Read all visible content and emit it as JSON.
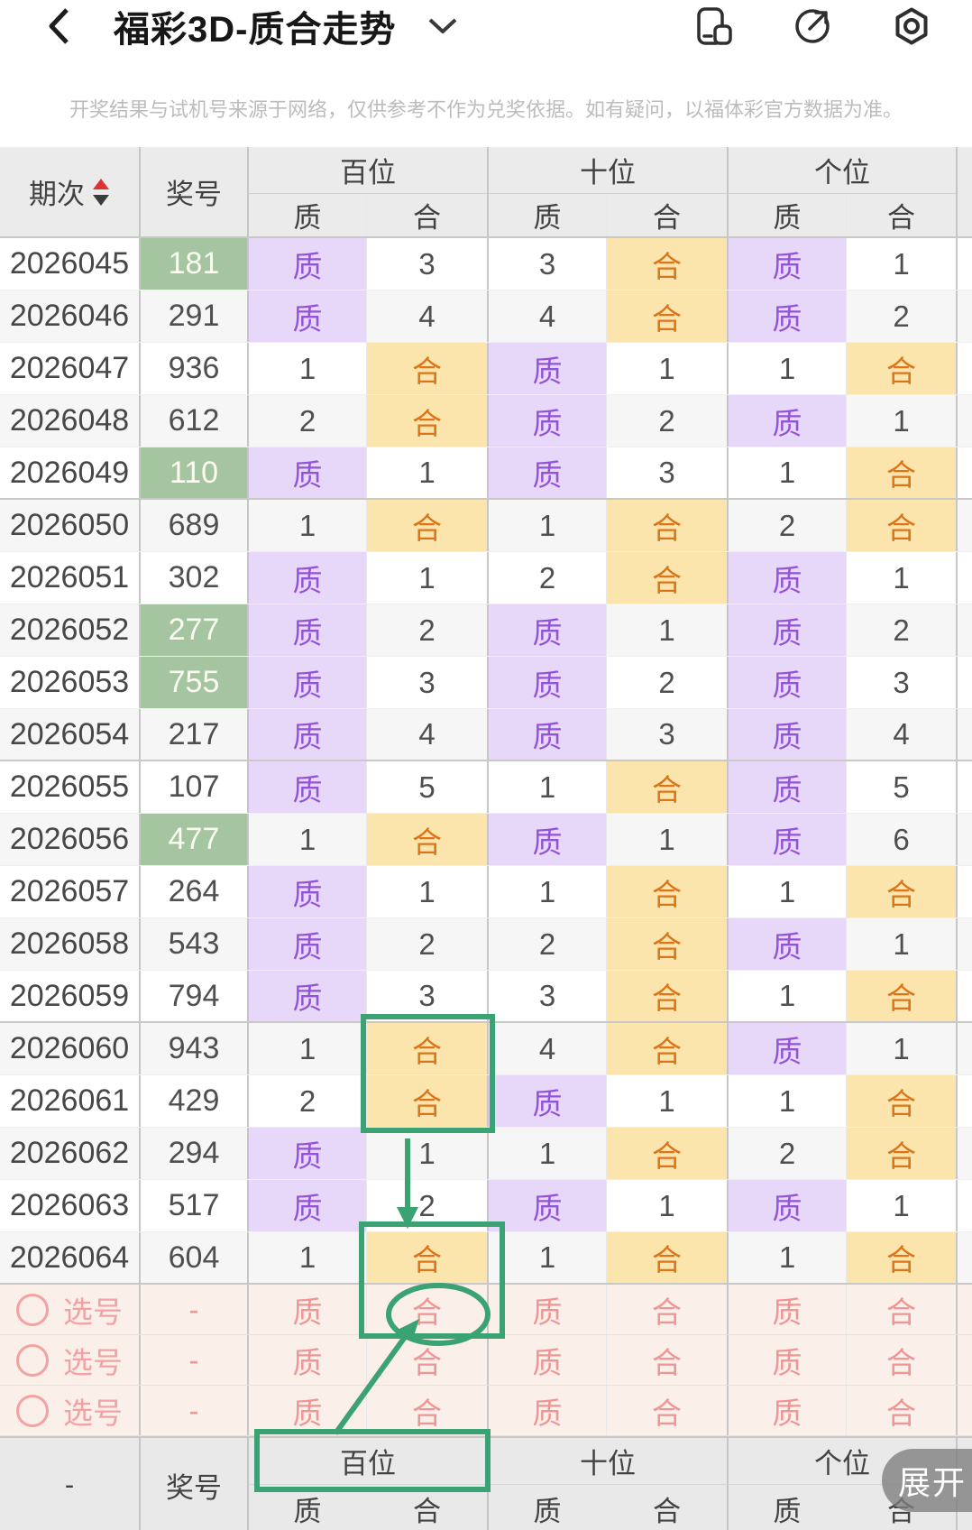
{
  "nav": {
    "title": "福彩3D-质合走势",
    "back_icon": "chevron-left",
    "dropdown_icon": "chevron-down",
    "action_icons": [
      "floating-window",
      "share",
      "settings"
    ]
  },
  "disclaimer": "开奖结果与试机号来源于网络，仅供参考不作为兑奖依据。如有疑问，以福体彩官方数据为准。",
  "table": {
    "headers": {
      "period": "期次",
      "prize": "奖号",
      "groups": [
        "百位",
        "十位",
        "个位"
      ],
      "subs": [
        "质",
        "合"
      ]
    },
    "rows": [
      {
        "period": "2026045",
        "prize": "181",
        "hl": true,
        "cells": [
          "质",
          "3",
          "3",
          "合",
          "质",
          "1"
        ],
        "extra": ""
      },
      {
        "period": "2026046",
        "prize": "291",
        "hl": false,
        "cells": [
          "质",
          "4",
          "4",
          "合",
          "质",
          "2"
        ],
        "extra": ""
      },
      {
        "period": "2026047",
        "prize": "936",
        "hl": false,
        "cells": [
          "1",
          "合",
          "质",
          "1",
          "1",
          "合"
        ],
        "extra": ""
      },
      {
        "period": "2026048",
        "prize": "612",
        "hl": false,
        "cells": [
          "2",
          "合",
          "质",
          "2",
          "质",
          "1"
        ],
        "extra": ""
      },
      {
        "period": "2026049",
        "prize": "110",
        "hl": true,
        "cells": [
          "质",
          "1",
          "质",
          "3",
          "1",
          "合"
        ],
        "extra": ""
      },
      {
        "period": "2026050",
        "prize": "689",
        "hl": false,
        "cells": [
          "1",
          "合",
          "1",
          "合",
          "2",
          "合"
        ],
        "extra": "blue"
      },
      {
        "period": "2026051",
        "prize": "302",
        "hl": false,
        "cells": [
          "质",
          "1",
          "2",
          "合",
          "质",
          "1"
        ],
        "extra": ""
      },
      {
        "period": "2026052",
        "prize": "277",
        "hl": true,
        "cells": [
          "质",
          "2",
          "质",
          "1",
          "质",
          "2"
        ],
        "extra": ""
      },
      {
        "period": "2026053",
        "prize": "755",
        "hl": true,
        "cells": [
          "质",
          "3",
          "质",
          "2",
          "质",
          "3"
        ],
        "extra": ""
      },
      {
        "period": "2026054",
        "prize": "217",
        "hl": false,
        "cells": [
          "质",
          "4",
          "质",
          "3",
          "质",
          "4"
        ],
        "extra": ""
      },
      {
        "period": "2026055",
        "prize": "107",
        "hl": false,
        "cells": [
          "质",
          "5",
          "1",
          "合",
          "质",
          "5"
        ],
        "extra": ""
      },
      {
        "period": "2026056",
        "prize": "477",
        "hl": true,
        "cells": [
          "1",
          "合",
          "质",
          "1",
          "质",
          "6"
        ],
        "extra": ""
      },
      {
        "period": "2026057",
        "prize": "264",
        "hl": false,
        "cells": [
          "质",
          "1",
          "1",
          "合",
          "1",
          "合"
        ],
        "extra": ""
      },
      {
        "period": "2026058",
        "prize": "543",
        "hl": false,
        "cells": [
          "质",
          "2",
          "2",
          "合",
          "质",
          "1"
        ],
        "extra": ""
      },
      {
        "period": "2026059",
        "prize": "794",
        "hl": false,
        "cells": [
          "质",
          "3",
          "3",
          "合",
          "1",
          "合"
        ],
        "extra": ""
      },
      {
        "period": "2026060",
        "prize": "943",
        "hl": false,
        "cells": [
          "1",
          "合",
          "4",
          "合",
          "质",
          "1"
        ],
        "extra": ""
      },
      {
        "period": "2026061",
        "prize": "429",
        "hl": false,
        "cells": [
          "2",
          "合",
          "质",
          "1",
          "1",
          "合"
        ],
        "extra": ""
      },
      {
        "period": "2026062",
        "prize": "294",
        "hl": false,
        "cells": [
          "质",
          "1",
          "1",
          "合",
          "2",
          "合"
        ],
        "extra": ""
      },
      {
        "period": "2026063",
        "prize": "517",
        "hl": false,
        "cells": [
          "质",
          "2",
          "质",
          "1",
          "质",
          "1"
        ],
        "extra": ""
      },
      {
        "period": "2026064",
        "prize": "604",
        "hl": false,
        "cells": [
          "1",
          "合",
          "1",
          "合",
          "1",
          "合"
        ],
        "extra": "blue"
      }
    ],
    "selection_rows": [
      {
        "label": "选号",
        "prize": "-",
        "cells": [
          "质",
          "合",
          "质",
          "合",
          "质",
          "合"
        ]
      },
      {
        "label": "选号",
        "prize": "-",
        "cells": [
          "质",
          "合",
          "质",
          "合",
          "质",
          "合"
        ]
      },
      {
        "label": "选号",
        "prize": "-",
        "cells": [
          "质",
          "合",
          "质",
          "合",
          "质",
          "合"
        ]
      }
    ],
    "footer": {
      "period": "-",
      "prize": "奖号",
      "groups": [
        "百位",
        "十位",
        "个位"
      ],
      "subs": [
        "质",
        "合",
        "质",
        "合",
        "质",
        "合"
      ]
    },
    "sort_icon": "sort-up-down"
  },
  "annotations": {
    "shapes": [
      "highlight-box-rows-2026060-2026061",
      "down-arrow",
      "highlight-box-row-2026064",
      "circle-on-selection",
      "up-arrow-from-footer",
      "highlight-box-footer-baiwei"
    ],
    "note": "hand-drawn green highlights on 百位-合 column"
  },
  "expand_button": "展开",
  "colors": {
    "header_bg": "#EBEBEB",
    "stripe_bg": "#F6F6F6",
    "purple_bg": "#E7D7F8",
    "purple_text": "#9254D6",
    "amber_bg": "#FBE5AD",
    "amber_text": "#DC7519",
    "green_bg": "#A5C4A0",
    "pink_bg": "#FBEFE9",
    "pink_text": "#EF9595",
    "pink_accent": "#F2A2A2",
    "blue_cell": "#7169F3",
    "annotation_green": "#3AA273",
    "sort_up_red": "#DD3333"
  }
}
